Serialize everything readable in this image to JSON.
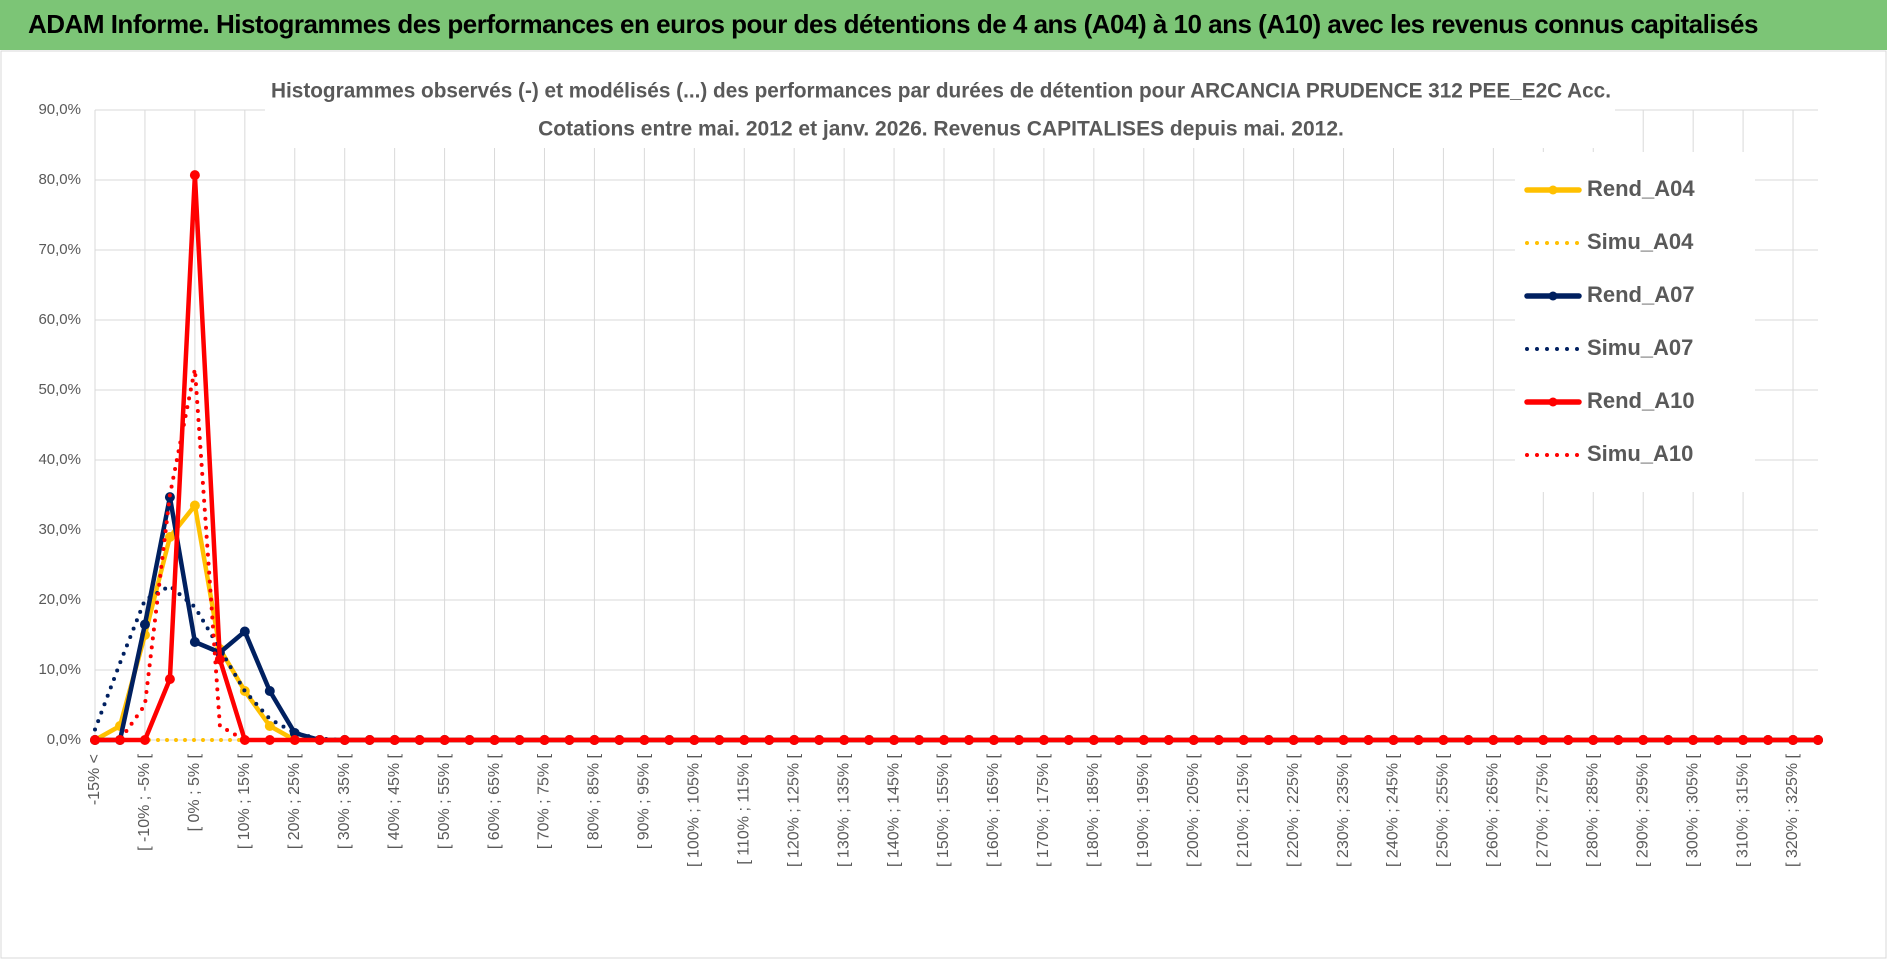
{
  "header": {
    "title": "ADAM Informe. Histogrammes des performances en euros pour des détentions de 4 ans (A04) à 10 ans (A10) avec les revenus connus capitalisés"
  },
  "chart_data": {
    "type": "line",
    "title": "Histogrammes observés (-) et modélisés (...) des performances par durées de détention pour ARCANCIA PRUDENCE 312 PEE_E2C Acc.",
    "subtitle": "Cotations entre mai. 2012 et janv. 2026. Revenus CAPITALISES depuis mai. 2012.",
    "categories": [
      "-15% <",
      null,
      "[ -10% ; -5% [",
      null,
      "[ 0% ; 5% [",
      null,
      "[ 10% ; 15% [",
      null,
      "[ 20% ; 25% [",
      null,
      "[ 30% ; 35% [",
      null,
      "[ 40% ; 45% [",
      null,
      "[ 50% ; 55% [",
      null,
      "[ 60% ; 65% [",
      null,
      "[ 70% ; 75% [",
      null,
      "[ 80% ; 85% [",
      null,
      "[ 90% ; 95% [",
      null,
      "[ 100% ; 105% [",
      null,
      "[ 110% ; 115% [",
      null,
      "[ 120% ; 125% [",
      null,
      "[ 130% ; 135% [",
      null,
      "[ 140% ; 145% [",
      null,
      "[ 150% ; 155% [",
      null,
      "[ 160% ; 165% [",
      null,
      "[ 170% ; 175% [",
      null,
      "[ 180% ; 185% [",
      null,
      "[ 190% ; 195% [",
      null,
      "[ 200% ; 205% [",
      null,
      "[ 210% ; 215% [",
      null,
      "[ 220% ; 225% [",
      null,
      "[ 230% ; 235% [",
      null,
      "[ 240% ; 245% [",
      null,
      "[ 250% ; 255% [",
      null,
      "[ 260% ; 265% [",
      null,
      "[ 270% ; 275% [",
      null,
      "[ 280% ; 285% [",
      null,
      "[ 290% ; 295% [",
      null,
      "[ 300% ; 305% [",
      null,
      "[ 310% ; 315% [",
      null,
      "[ 320% ; 325% [",
      null
    ],
    "series": [
      {
        "name": "Rend_A04",
        "color": "#ffc000",
        "dash": "solid",
        "markers": true,
        "values": [
          0,
          2,
          15,
          29,
          33.5,
          13,
          7,
          2,
          0,
          0,
          0,
          0,
          0,
          0,
          0,
          0,
          0,
          0,
          0,
          0,
          0,
          0,
          0,
          0,
          0,
          0,
          0,
          0,
          0,
          0,
          0,
          0,
          0,
          0,
          0,
          0,
          0,
          0,
          0,
          0,
          0,
          0,
          0,
          0,
          0,
          0,
          0,
          0,
          0,
          0,
          0,
          0,
          0,
          0,
          0,
          0,
          0,
          0,
          0,
          0,
          0,
          0,
          0,
          0,
          0,
          0,
          0,
          0,
          0,
          0
        ]
      },
      {
        "name": "Simu_A04",
        "color": "#ffc000",
        "dash": "dotted",
        "markers": false,
        "values": [
          0,
          0,
          0,
          0,
          0,
          0,
          0,
          0,
          0,
          0,
          0,
          0,
          0,
          0,
          0,
          0,
          0,
          0,
          0,
          0,
          0,
          0,
          0,
          0,
          0,
          0,
          0,
          0,
          0,
          0,
          0,
          0,
          0,
          0,
          0,
          0,
          0,
          0,
          0,
          0,
          0,
          0,
          0,
          0,
          0,
          0,
          0,
          0,
          0,
          0,
          0,
          0,
          0,
          0,
          0,
          0,
          0,
          0,
          0,
          0,
          0,
          0,
          0,
          0,
          0,
          0,
          0,
          0,
          0,
          0
        ]
      },
      {
        "name": "Rend_A07",
        "color": "#002060",
        "dash": "solid",
        "markers": true,
        "values": [
          0,
          0,
          16.5,
          34.7,
          14,
          12.5,
          15.5,
          7,
          1,
          0,
          0,
          0,
          0,
          0,
          0,
          0,
          0,
          0,
          0,
          0,
          0,
          0,
          0,
          0,
          0,
          0,
          0,
          0,
          0,
          0,
          0,
          0,
          0,
          0,
          0,
          0,
          0,
          0,
          0,
          0,
          0,
          0,
          0,
          0,
          0,
          0,
          0,
          0,
          0,
          0,
          0,
          0,
          0,
          0,
          0,
          0,
          0,
          0,
          0,
          0,
          0,
          0,
          0,
          0,
          0,
          0,
          0,
          0,
          0,
          0
        ]
      },
      {
        "name": "Simu_A07",
        "color": "#002060",
        "dash": "dotted",
        "markers": false,
        "values": [
          1.5,
          11,
          20,
          22,
          19,
          13,
          7,
          3,
          1,
          0.2,
          0,
          0,
          0,
          0,
          0,
          0,
          0,
          0,
          0,
          0,
          0,
          0,
          0,
          0,
          0,
          0,
          0,
          0,
          0,
          0,
          0,
          0,
          0,
          0,
          0,
          0,
          0,
          0,
          0,
          0,
          0,
          0,
          0,
          0,
          0,
          0,
          0,
          0,
          0,
          0,
          0,
          0,
          0,
          0,
          0,
          0,
          0,
          0,
          0,
          0,
          0,
          0,
          0,
          0,
          0,
          0,
          0,
          0,
          0,
          0
        ]
      },
      {
        "name": "Rend_A10",
        "color": "#ff0000",
        "dash": "solid",
        "markers": true,
        "values": [
          0,
          0,
          0,
          8.7,
          80.7,
          11.5,
          0,
          0,
          0,
          0,
          0,
          0,
          0,
          0,
          0,
          0,
          0,
          0,
          0,
          0,
          0,
          0,
          0,
          0,
          0,
          0,
          0,
          0,
          0,
          0,
          0,
          0,
          0,
          0,
          0,
          0,
          0,
          0,
          0,
          0,
          0,
          0,
          0,
          0,
          0,
          0,
          0,
          0,
          0,
          0,
          0,
          0,
          0,
          0,
          0,
          0,
          0,
          0,
          0,
          0,
          0,
          0,
          0,
          0,
          0,
          0,
          0,
          0,
          0,
          0
        ]
      },
      {
        "name": "Simu_A10",
        "color": "#ff0000",
        "dash": "dotted",
        "markers": false,
        "values": [
          0,
          0,
          5,
          35,
          53,
          2,
          0,
          0,
          0,
          0,
          0,
          0,
          0,
          0,
          0,
          0,
          0,
          0,
          0,
          0,
          0,
          0,
          0,
          0,
          0,
          0,
          0,
          0,
          0,
          0,
          0,
          0,
          0,
          0,
          0,
          0,
          0,
          0,
          0,
          0,
          0,
          0,
          0,
          0,
          0,
          0,
          0,
          0,
          0,
          0,
          0,
          0,
          0,
          0,
          0,
          0,
          0,
          0,
          0,
          0,
          0,
          0,
          0,
          0,
          0,
          0,
          0,
          0,
          0,
          0
        ]
      }
    ],
    "ylim": [
      0,
      90
    ],
    "yticks": [
      {
        "value": 0,
        "label": "0,0%"
      },
      {
        "value": 10,
        "label": "10,0%"
      },
      {
        "value": 20,
        "label": "20,0%"
      },
      {
        "value": 30,
        "label": "30,0%"
      },
      {
        "value": 40,
        "label": "40,0%"
      },
      {
        "value": 50,
        "label": "50,0%"
      },
      {
        "value": 60,
        "label": "60,0%"
      },
      {
        "value": 70,
        "label": "70,0%"
      },
      {
        "value": 80,
        "label": "80,0%"
      },
      {
        "value": 90,
        "label": "90,0%"
      }
    ],
    "grid": true,
    "legend": "right"
  }
}
